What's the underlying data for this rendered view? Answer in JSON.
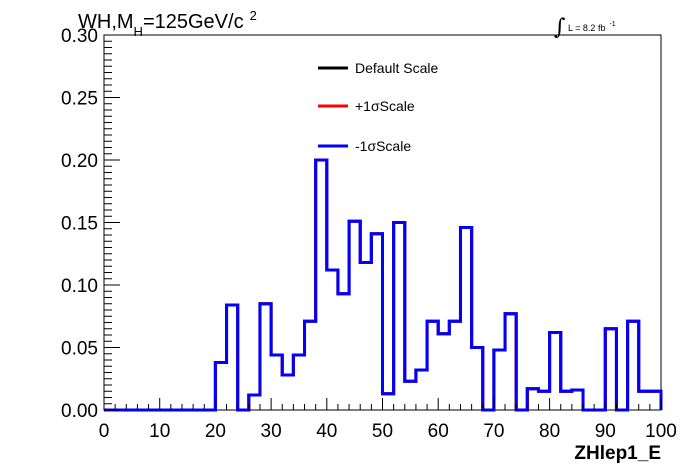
{
  "chart_data": {
    "type": "step",
    "title": {
      "prefix": "WH,M",
      "subscript": "H",
      "suffix": "=125GeV/c",
      "superscript": "2"
    },
    "luminosity": {
      "symbol": "∫",
      "text": "L = 8.2 fb",
      "superscript": "-1"
    },
    "xlabel": "ZHlep1_E",
    "ylabel": "",
    "xlim": [
      0,
      100
    ],
    "ylim": [
      0,
      0.3
    ],
    "x_ticks": [
      "0",
      "10",
      "20",
      "30",
      "40",
      "50",
      "60",
      "70",
      "80",
      "90",
      "100"
    ],
    "y_ticks": [
      "0.00",
      "0.05",
      "0.10",
      "0.15",
      "0.20",
      "0.25",
      "0.30"
    ],
    "bin_edges": [
      0,
      2,
      4,
      6,
      8,
      10,
      12,
      14,
      16,
      18,
      20,
      22,
      24,
      26,
      28,
      30,
      32,
      34,
      36,
      38,
      40,
      42,
      44,
      46,
      48,
      50,
      52,
      54,
      56,
      58,
      60,
      62,
      64,
      66,
      68,
      70,
      72,
      74,
      76,
      78,
      80,
      82,
      84,
      86,
      88,
      90,
      92,
      94,
      96,
      98,
      100
    ],
    "series": [
      {
        "name": "Default Scale",
        "color": "#000000",
        "values": [
          0,
          0,
          0,
          0,
          0,
          0,
          0,
          0,
          0,
          0,
          0.038,
          0.084,
          0,
          0.012,
          0.085,
          0.044,
          0.028,
          0.044,
          0.071,
          0.2,
          0.112,
          0.093,
          0.151,
          0.118,
          0.141,
          0.013,
          0.15,
          0.023,
          0.032,
          0.071,
          0.061,
          0.071,
          0.146,
          0.05,
          0,
          0.048,
          0.077,
          0,
          0.017,
          0.015,
          0.062,
          0.015,
          0.016,
          0,
          0,
          0.065,
          0,
          0.071,
          0.015,
          0.015
        ]
      },
      {
        "name": "+1σScale",
        "color": "#ff0000",
        "values": [
          0,
          0,
          0,
          0,
          0,
          0,
          0,
          0,
          0,
          0,
          0.038,
          0.084,
          0,
          0.012,
          0.085,
          0.044,
          0.028,
          0.044,
          0.071,
          0.2,
          0.112,
          0.093,
          0.151,
          0.118,
          0.141,
          0.013,
          0.15,
          0.023,
          0.032,
          0.071,
          0.061,
          0.071,
          0.146,
          0.05,
          0,
          0.048,
          0.077,
          0,
          0.017,
          0.015,
          0.062,
          0.015,
          0.016,
          0,
          0,
          0.065,
          0,
          0.071,
          0.015,
          0.015
        ]
      },
      {
        "name": "-1σScale",
        "color": "#0000ff",
        "values": [
          0,
          0,
          0,
          0,
          0,
          0,
          0,
          0,
          0,
          0,
          0.038,
          0.084,
          0,
          0.012,
          0.085,
          0.044,
          0.028,
          0.044,
          0.071,
          0.2,
          0.112,
          0.093,
          0.151,
          0.118,
          0.141,
          0.013,
          0.15,
          0.023,
          0.032,
          0.071,
          0.061,
          0.071,
          0.146,
          0.05,
          0,
          0.048,
          0.077,
          0,
          0.017,
          0.015,
          0.062,
          0.015,
          0.016,
          0,
          0,
          0.065,
          0,
          0.071,
          0.015,
          0.015
        ]
      }
    ],
    "legend_placement": "top-center",
    "grid": false
  }
}
